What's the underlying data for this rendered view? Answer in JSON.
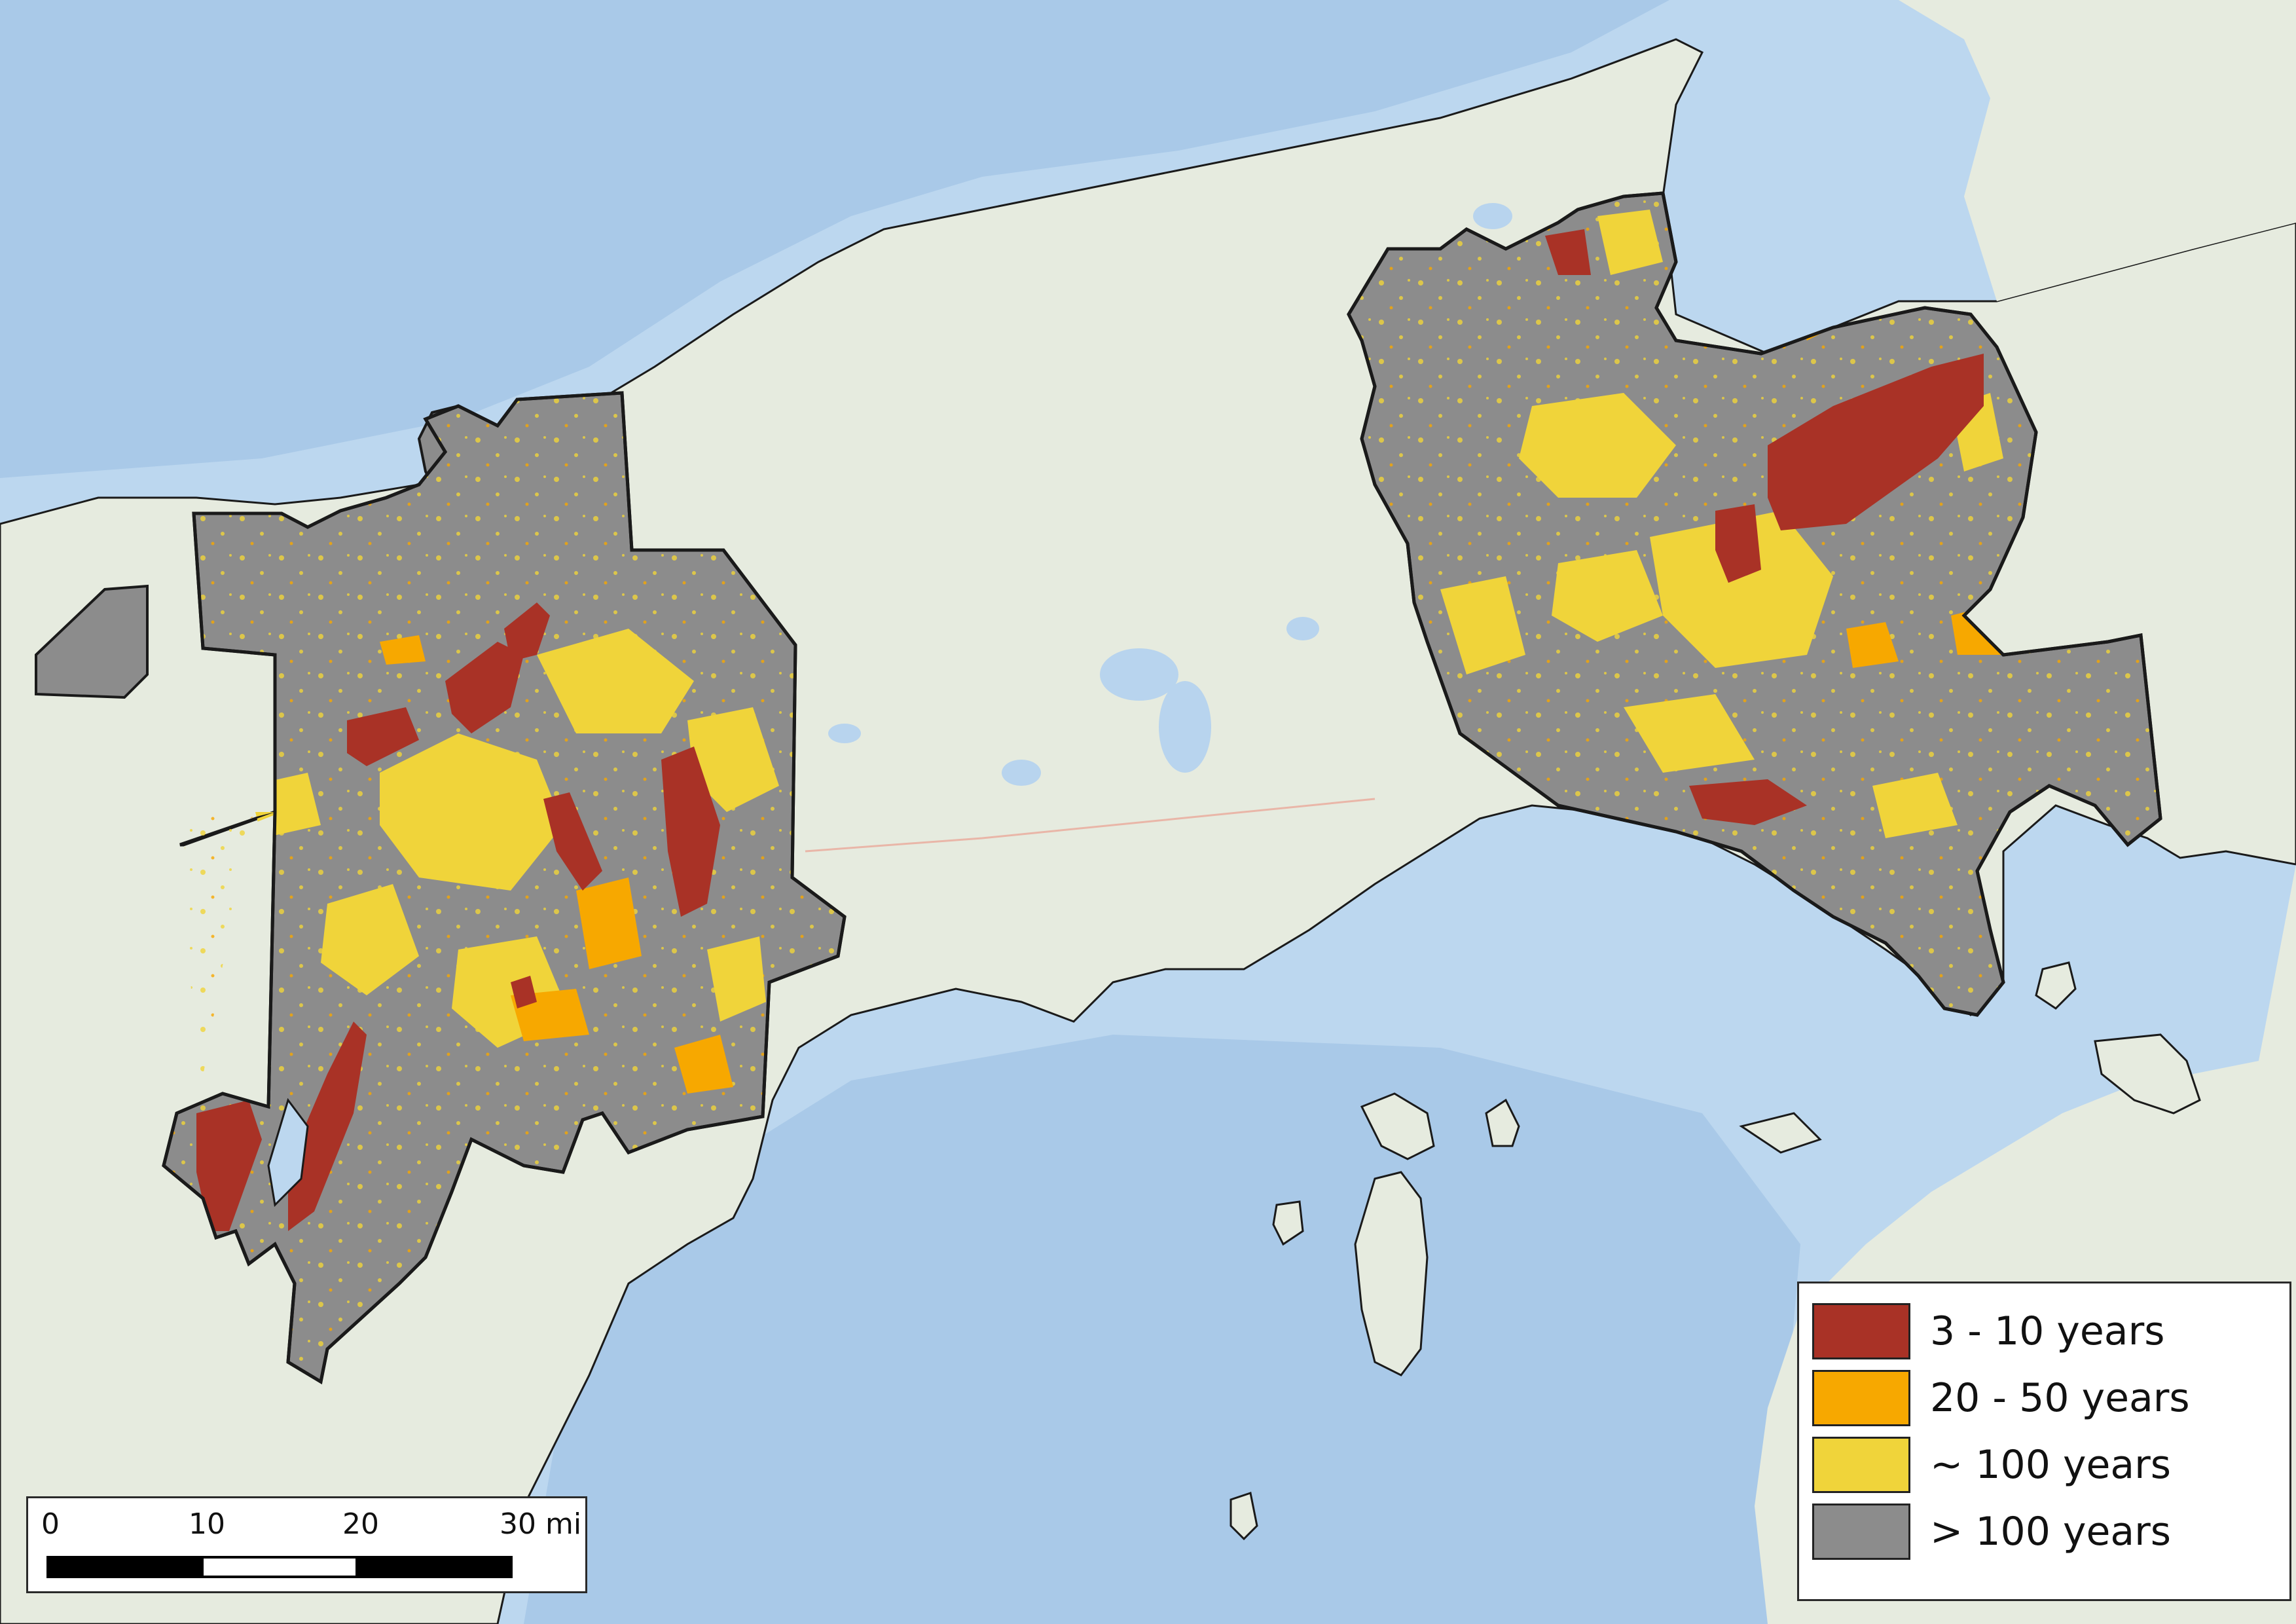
{
  "colors": {
    "water": "#bcd7ef",
    "water_deep": "#a9c9e8",
    "land": "#e6ebdf",
    "boundary": "#1a1a1a",
    "lake": "#b8d4ee"
  },
  "legend": {
    "items": [
      {
        "label": "3 - 10 years",
        "color": "#a93226"
      },
      {
        "label": "20 - 50 years",
        "color": "#f7a800"
      },
      {
        "label": "~ 100 years",
        "color": "#f0d43a"
      },
      {
        "label": "> 100 years",
        "color": "#8c8c8c"
      }
    ]
  },
  "scalebar": {
    "labels": [
      "0",
      "10",
      "20",
      "30 mi"
    ],
    "segment_fill": [
      "#000000",
      "#ffffff",
      "#000000"
    ]
  }
}
